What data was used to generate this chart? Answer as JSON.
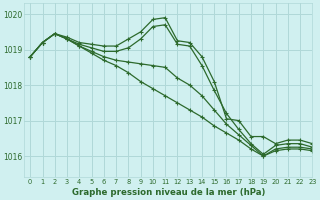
{
  "background_color": "#d0f0f0",
  "grid_color": "#b0d8d8",
  "line_color": "#2d6a2d",
  "title": "Graphe pression niveau de la mer (hPa)",
  "xlim": [
    -0.5,
    23
  ],
  "ylim": [
    1015.4,
    1020.3
  ],
  "yticks": [
    1016,
    1017,
    1018,
    1019,
    1020
  ],
  "xticks": [
    0,
    1,
    2,
    3,
    4,
    5,
    6,
    7,
    8,
    9,
    10,
    11,
    12,
    13,
    14,
    15,
    16,
    17,
    18,
    19,
    20,
    21,
    22,
    23
  ],
  "series": [
    {
      "x": [
        0,
        1,
        2,
        3,
        4,
        5,
        6,
        7,
        8,
        9,
        10,
        11,
        12,
        13,
        14,
        15,
        16,
        17,
        18,
        19,
        20,
        21,
        22,
        23
      ],
      "y": [
        1018.8,
        1019.2,
        1019.45,
        1019.35,
        1019.2,
        1019.15,
        1019.1,
        1019.1,
        1019.3,
        1019.5,
        1019.85,
        1019.9,
        1019.25,
        1019.2,
        1018.8,
        1018.1,
        1017.05,
        1017.0,
        1016.55,
        1016.55,
        1016.35,
        1016.45,
        1016.45,
        1016.35
      ]
    },
    {
      "x": [
        0,
        1,
        2,
        3,
        4,
        5,
        6,
        7,
        8,
        9,
        10,
        11,
        12,
        13,
        14,
        15,
        16,
        17,
        18,
        19,
        20,
        21,
        22,
        23
      ],
      "y": [
        1018.8,
        1019.2,
        1019.45,
        1019.3,
        1019.15,
        1019.05,
        1018.95,
        1018.95,
        1019.05,
        1019.3,
        1019.65,
        1019.7,
        1019.15,
        1019.1,
        1018.55,
        1017.85,
        1017.2,
        1016.75,
        1016.35,
        1016.05,
        1016.3,
        1016.35,
        1016.35,
        1016.25
      ]
    },
    {
      "x": [
        0,
        1,
        2,
        3,
        4,
        5,
        6,
        7,
        8,
        9,
        10,
        11,
        12,
        13,
        14,
        15,
        16,
        17,
        18,
        19,
        20,
        21,
        22,
        23
      ],
      "y": [
        1018.8,
        1019.2,
        1019.45,
        1019.3,
        1019.1,
        1018.95,
        1018.8,
        1018.7,
        1018.65,
        1018.6,
        1018.55,
        1018.5,
        1018.2,
        1018.0,
        1017.7,
        1017.3,
        1016.9,
        1016.6,
        1016.3,
        1016.0,
        1016.2,
        1016.25,
        1016.25,
        1016.2
      ]
    },
    {
      "x": [
        0,
        1,
        2,
        3,
        4,
        5,
        6,
        7,
        8,
        9,
        10,
        11,
        12,
        13,
        14,
        15,
        16,
        17,
        18,
        19,
        20,
        21,
        22,
        23
      ],
      "y": [
        1018.8,
        1019.2,
        1019.45,
        1019.3,
        1019.1,
        1018.9,
        1018.7,
        1018.55,
        1018.35,
        1018.1,
        1017.9,
        1017.7,
        1017.5,
        1017.3,
        1017.1,
        1016.85,
        1016.65,
        1016.45,
        1016.2,
        1016.0,
        1016.15,
        1016.2,
        1016.2,
        1016.15
      ]
    }
  ]
}
